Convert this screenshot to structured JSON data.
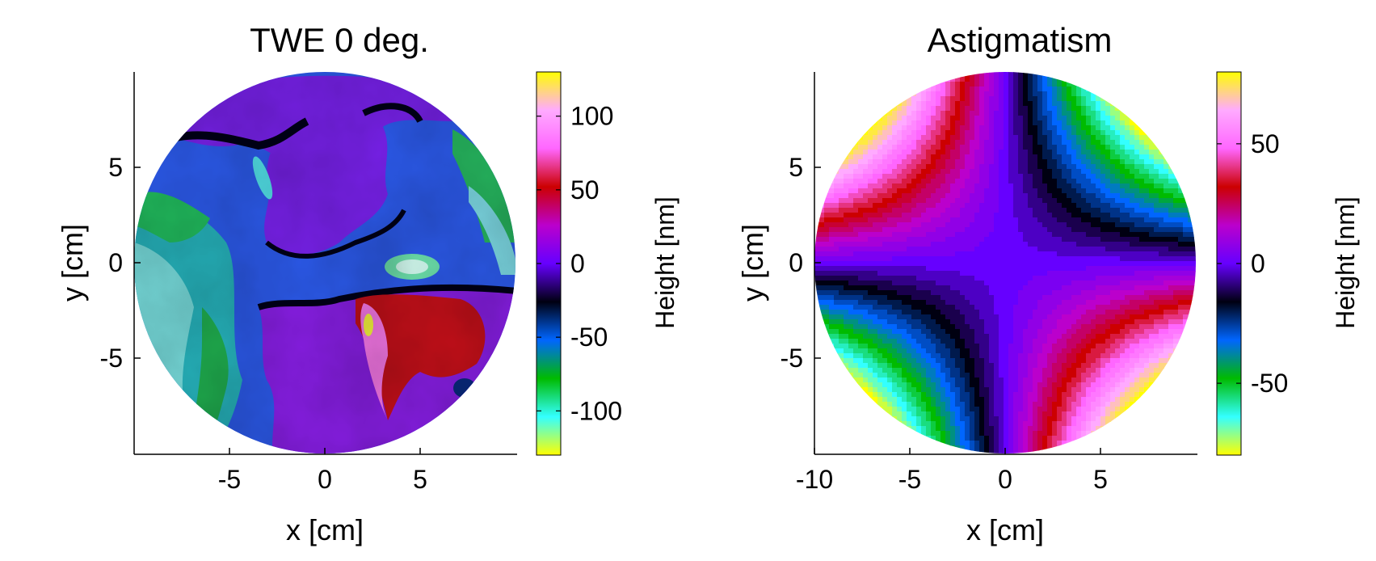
{
  "chart_data": [
    {
      "type": "heatmap",
      "title": "TWE 0 deg.",
      "xlabel": "x [cm]",
      "ylabel": "y [cm]",
      "colorbar_label": "Height [nm]",
      "xlim": [
        -10,
        10
      ],
      "ylim": [
        -10,
        10
      ],
      "xticks": [
        -5,
        0,
        5
      ],
      "yticks": [
        -5,
        0,
        5
      ],
      "clim": [
        -130,
        130
      ],
      "cticks": [
        -100,
        -50,
        0,
        50,
        100
      ],
      "aperture": "circular, radius 10 cm",
      "pattern": "measured transmitted wavefront error map"
    },
    {
      "type": "heatmap",
      "title": "Astigmatism",
      "xlabel": "x [cm]",
      "ylabel": "y [cm]",
      "colorbar_label": "Height [nm]",
      "xlim": [
        -10,
        10
      ],
      "ylim": [
        -10,
        10
      ],
      "xticks": [
        -10,
        -5,
        0,
        5
      ],
      "yticks": [
        -5,
        0,
        5
      ],
      "clim": [
        -80,
        80
      ],
      "cticks": [
        -50,
        0,
        50
      ],
      "aperture": "circular, radius 10 cm",
      "pattern": "saddle surface, positive along y = -x diagonal, negative along y = x diagonal"
    }
  ],
  "colormap": [
    "#ffff00",
    "#33ffff",
    "#00bb00",
    "#0066ff",
    "#000011",
    "#6600ff",
    "#bb00cc",
    "#cc0000",
    "#ff66ff",
    "#ffaaff",
    "#ffff00"
  ]
}
